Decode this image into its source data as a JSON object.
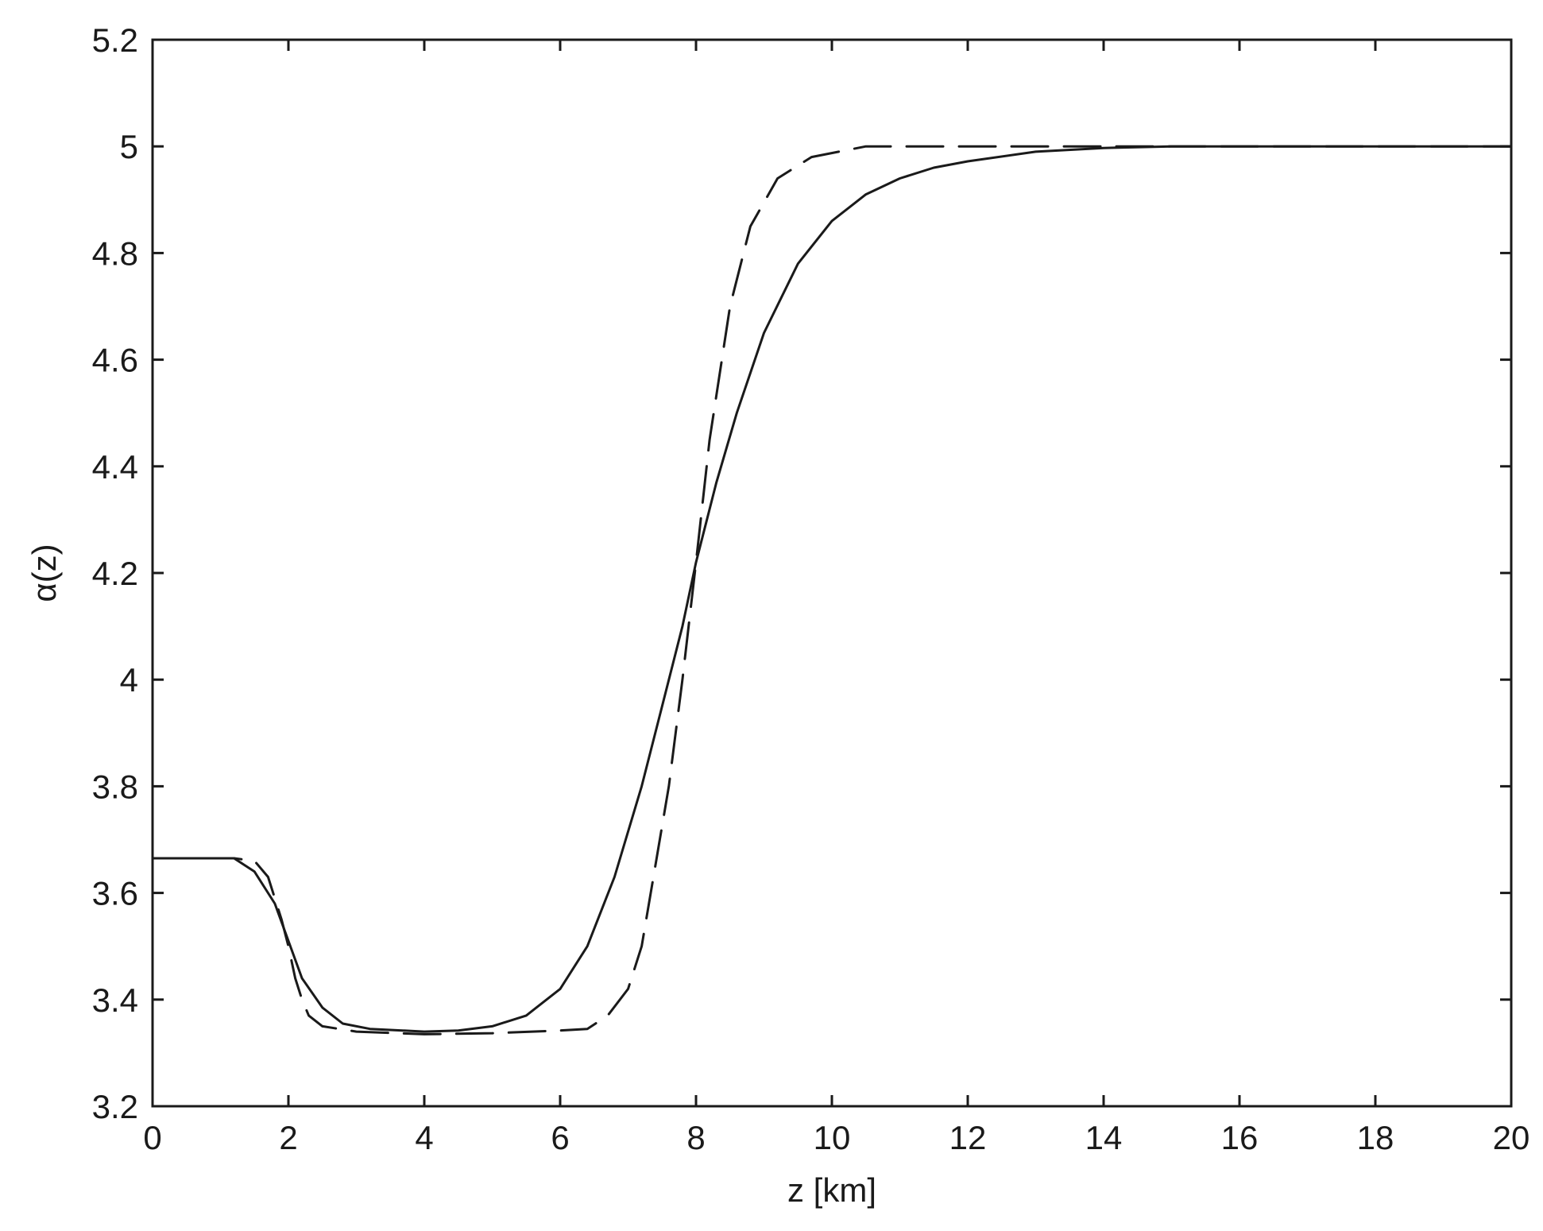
{
  "chart_data": {
    "type": "line",
    "title": "",
    "xlabel": "z [km]",
    "ylabel": "α(z)",
    "xlim": [
      0,
      20
    ],
    "ylim": [
      3.2,
      5.2
    ],
    "xticks": [
      0,
      2,
      4,
      6,
      8,
      10,
      12,
      14,
      16,
      18,
      20
    ],
    "yticks": [
      3.2,
      3.4,
      3.6,
      3.8,
      4,
      4.2,
      4.4,
      4.6,
      4.8,
      5,
      5.2
    ],
    "xtick_labels": [
      "0",
      "2",
      "4",
      "6",
      "8",
      "10",
      "12",
      "14",
      "16",
      "18",
      "20"
    ],
    "ytick_labels": [
      "3.2",
      "3.4",
      "3.6",
      "3.8",
      "4",
      "4.2",
      "4.4",
      "4.6",
      "4.8",
      "5",
      "5.2"
    ],
    "grid": false,
    "legend": "none",
    "series": [
      {
        "style": "solid",
        "color": "#1a1a1a",
        "points": [
          [
            0,
            3.665
          ],
          [
            1.2,
            3.665
          ],
          [
            1.5,
            3.64
          ],
          [
            1.8,
            3.58
          ],
          [
            2.0,
            3.51
          ],
          [
            2.2,
            3.44
          ],
          [
            2.5,
            3.385
          ],
          [
            2.8,
            3.355
          ],
          [
            3.2,
            3.345
          ],
          [
            4.0,
            3.34
          ],
          [
            4.5,
            3.342
          ],
          [
            5.0,
            3.35
          ],
          [
            5.5,
            3.37
          ],
          [
            6.0,
            3.42
          ],
          [
            6.4,
            3.5
          ],
          [
            6.8,
            3.63
          ],
          [
            7.2,
            3.8
          ],
          [
            7.5,
            3.95
          ],
          [
            7.8,
            4.1
          ],
          [
            8.0,
            4.22
          ],
          [
            8.3,
            4.37
          ],
          [
            8.6,
            4.5
          ],
          [
            9.0,
            4.65
          ],
          [
            9.5,
            4.78
          ],
          [
            10.0,
            4.86
          ],
          [
            10.5,
            4.91
          ],
          [
            11.0,
            4.94
          ],
          [
            11.5,
            4.96
          ],
          [
            12.0,
            4.972
          ],
          [
            13.0,
            4.99
          ],
          [
            14.0,
            4.997
          ],
          [
            15.0,
            5.0
          ],
          [
            20.0,
            5.0
          ]
        ]
      },
      {
        "style": "dashed",
        "color": "#1a1a1a",
        "points": [
          [
            0,
            3.665
          ],
          [
            1.2,
            3.665
          ],
          [
            1.5,
            3.66
          ],
          [
            1.7,
            3.63
          ],
          [
            1.9,
            3.55
          ],
          [
            2.0,
            3.5
          ],
          [
            2.1,
            3.44
          ],
          [
            2.2,
            3.4
          ],
          [
            2.3,
            3.37
          ],
          [
            2.5,
            3.35
          ],
          [
            3.0,
            3.34
          ],
          [
            4.0,
            3.335
          ],
          [
            5.0,
            3.337
          ],
          [
            6.0,
            3.342
          ],
          [
            6.4,
            3.345
          ],
          [
            6.7,
            3.37
          ],
          [
            7.0,
            3.42
          ],
          [
            7.2,
            3.5
          ],
          [
            7.4,
            3.65
          ],
          [
            7.6,
            3.8
          ],
          [
            7.8,
            4.0
          ],
          [
            8.0,
            4.22
          ],
          [
            8.2,
            4.45
          ],
          [
            8.5,
            4.7
          ],
          [
            8.8,
            4.85
          ],
          [
            9.2,
            4.94
          ],
          [
            9.7,
            4.98
          ],
          [
            10.5,
            5.0
          ],
          [
            20.0,
            5.0
          ]
        ]
      }
    ]
  }
}
